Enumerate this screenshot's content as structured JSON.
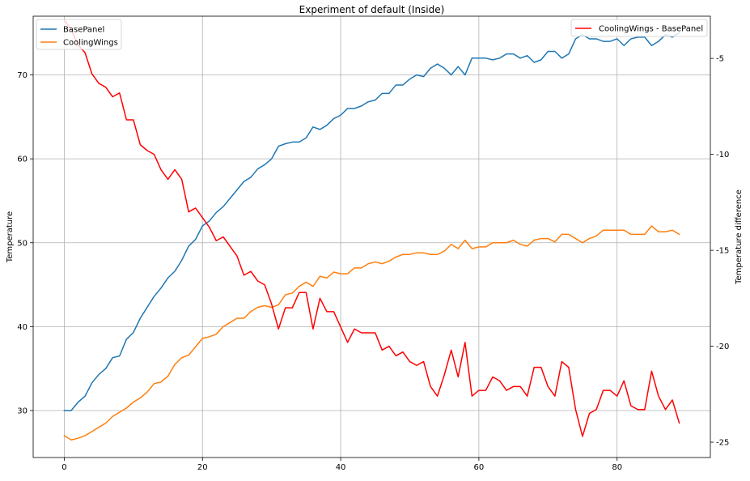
{
  "chart_data": {
    "type": "line",
    "title": "Experiment of default (Inside)",
    "xlabel": "",
    "ylabel": "Temperature",
    "ylabel_right": "Temperature difference",
    "xlim": [
      -4.5,
      93.5
    ],
    "ylim": [
      24.4,
      77
    ],
    "ylim_right": [
      -25.8,
      -2.8
    ],
    "x_ticks": [
      0,
      20,
      40,
      60,
      80
    ],
    "y_ticks": [
      30,
      40,
      50,
      60,
      70
    ],
    "y_ticks_right": [
      -25,
      -20,
      -15,
      -10,
      -5
    ],
    "grid": true,
    "legend_left_position": "top-left",
    "legend_right_position": "top-right",
    "series": [
      {
        "name": "BasePanel",
        "axis": "left",
        "color": "#1f77b4",
        "values": [
          30,
          30,
          31,
          31.7,
          33.3,
          34.3,
          35,
          36.3,
          36.5,
          38.5,
          39.3,
          41,
          42.3,
          43.6,
          44.6,
          45.8,
          46.6,
          47.9,
          49.6,
          50.4,
          52,
          52.6,
          53.6,
          54.3,
          55.3,
          56.3,
          57.3,
          57.8,
          58.8,
          59.3,
          60,
          61.5,
          61.8,
          62,
          62,
          62.5,
          63.8,
          63.5,
          64,
          64.8,
          65.2,
          66,
          66,
          66.3,
          66.8,
          67,
          67.8,
          67.8,
          68.8,
          68.8,
          69.5,
          70,
          69.8,
          70.8,
          71.3,
          70.8,
          70,
          71,
          70,
          72,
          72,
          72,
          71.8,
          72,
          72.5,
          72.5,
          72,
          72.3,
          71.5,
          71.8,
          72.8,
          72.8,
          72,
          72.5,
          74.3,
          74.8,
          74.3,
          74.3,
          74,
          74,
          74.3,
          73.5,
          74.3,
          74.5,
          74.5,
          73.5,
          74,
          74.8,
          74.5,
          75
        ]
      },
      {
        "name": "CoolingWings",
        "axis": "left",
        "color": "#ff7f0e",
        "values": [
          27,
          26.5,
          26.7,
          27,
          27.5,
          28,
          28.5,
          29.3,
          29.8,
          30.3,
          31,
          31.5,
          32.2,
          33.2,
          33.4,
          34.1,
          35.5,
          36.3,
          36.6,
          37.6,
          38.6,
          38.8,
          39.1,
          40,
          40.5,
          41,
          41,
          41.8,
          42.3,
          42.5,
          42.3,
          42.6,
          43.8,
          44,
          44.8,
          45.3,
          44.8,
          46,
          45.8,
          46.5,
          46.3,
          46.3,
          47,
          47,
          47.5,
          47.7,
          47.5,
          47.8,
          48.3,
          48.6,
          48.6,
          48.8,
          48.8,
          48.6,
          48.6,
          49,
          49.8,
          49.3,
          50.3,
          49.3,
          49.5,
          49.5,
          50,
          50,
          50,
          50.3,
          49.8,
          49.6,
          50.3,
          50.5,
          50.5,
          50.1,
          51,
          51,
          50.5,
          50,
          50.5,
          50.8,
          51.5,
          51.5,
          51.5,
          51.5,
          51,
          51,
          51,
          52,
          51.3,
          51.3,
          51.5,
          51
        ]
      },
      {
        "name": "CoolingWings - BasePanel",
        "axis": "right",
        "color": "#ff0000",
        "values": [
          -3,
          -3.5,
          -4.3,
          -4.7,
          -5.8,
          -6.3,
          -6.5,
          -7,
          -6.8,
          -8.2,
          -8.2,
          -9.5,
          -9.8,
          -10,
          -10.8,
          -11.3,
          -10.8,
          -11.3,
          -13,
          -12.8,
          -13.3,
          -13.8,
          -14.5,
          -14.3,
          -14.8,
          -15.3,
          -16.3,
          -16.1,
          -16.6,
          -16.8,
          -17.8,
          -19.1,
          -18,
          -18,
          -17.2,
          -17.2,
          -19.1,
          -17.5,
          -18.2,
          -18.2,
          -19,
          -19.8,
          -19.1,
          -19.3,
          -19.3,
          -19.3,
          -20.2,
          -20,
          -20.5,
          -20.3,
          -20.8,
          -21,
          -20.8,
          -22.1,
          -22.6,
          -21.5,
          -20.2,
          -21.6,
          -19.8,
          -22.6,
          -22.3,
          -22.3,
          -21.6,
          -21.8,
          -22.3,
          -22.1,
          -22.1,
          -22.6,
          -21.1,
          -21.1,
          -22.1,
          -22.6,
          -20.8,
          -21.1,
          -23.3,
          -24.7,
          -23.5,
          -23.3,
          -22.3,
          -22.3,
          -22.6,
          -21.8,
          -23.1,
          -23.3,
          -23.3,
          -21.3,
          -22.6,
          -23.3,
          -22.8,
          -24
        ]
      }
    ]
  }
}
